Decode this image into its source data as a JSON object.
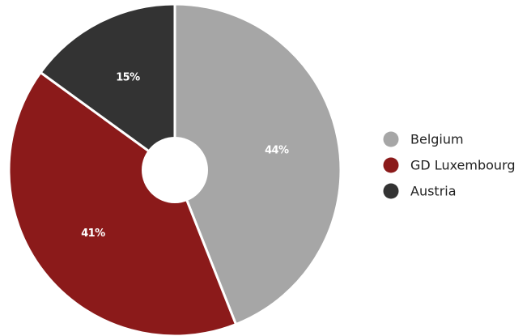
{
  "chart_data": {
    "type": "pie",
    "title": "",
    "donut": true,
    "legend_position": "right",
    "series": [
      {
        "name": "Belgium",
        "value": 44,
        "label": "44%",
        "color": "#a6a6a6"
      },
      {
        "name": "GD Luxembourg",
        "value": 41,
        "label": "41%",
        "color": "#8b1a1a"
      },
      {
        "name": "Austria",
        "value": 15,
        "label": "15%",
        "color": "#333333"
      }
    ]
  }
}
